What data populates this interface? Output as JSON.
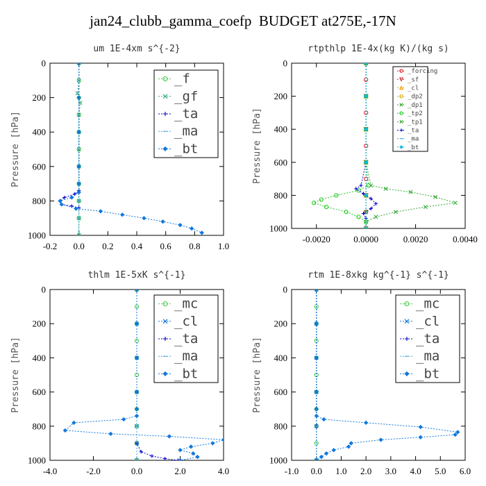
{
  "title": "jan24_clubb_gamma_coefp  BUDGET at275E,-17N",
  "chart_data": [
    {
      "type": "line",
      "title": "um  1E-4xm s^{-2}",
      "ylabel": "Pressure [hPa]",
      "xlim": [
        -0.2,
        1.0
      ],
      "ylim": [
        1000,
        0
      ],
      "xticks": [
        "-0.2",
        "0.0",
        "0.2",
        "0.4",
        "0.6",
        "0.8",
        "1.0"
      ],
      "xtick_values": [
        -0.2,
        0.0,
        0.2,
        0.4,
        0.6,
        0.8,
        1.0
      ],
      "yticks": [
        "0",
        "200",
        "400",
        "600",
        "800",
        "1000"
      ],
      "ytick_values": [
        0,
        200,
        400,
        600,
        800,
        1000
      ],
      "legend_position": "top-right",
      "series": [
        {
          "name": "_f",
          "color": "#44cc44",
          "marker": "circle",
          "x": [
            0.0,
            0.0,
            0.0,
            0.0,
            0.0,
            0.0,
            0.0,
            0.0,
            0.0,
            0.0,
            0.0
          ],
          "y": [
            0,
            100,
            200,
            300,
            400,
            500,
            600,
            700,
            800,
            900,
            1000
          ]
        },
        {
          "name": "_gf",
          "color": "#33aa77",
          "marker": "x",
          "x": [
            0.0,
            0.0,
            -0.01,
            0.01,
            0.0,
            0.0,
            0.0,
            0.0,
            0.0,
            0.0,
            0.0,
            0.0
          ],
          "y": [
            0,
            100,
            175,
            230,
            300,
            400,
            500,
            600,
            700,
            800,
            900,
            1000
          ]
        },
        {
          "name": "_ta",
          "color": "#0000cc",
          "marker": "plus",
          "x": [
            0.0,
            0.0,
            0.0,
            0.0,
            0.0,
            0.0,
            -0.03,
            -0.1,
            -0.13,
            -0.12,
            -0.05,
            0.0
          ],
          "y": [
            0,
            200,
            400,
            600,
            700,
            740,
            760,
            780,
            800,
            820,
            830,
            840
          ]
        },
        {
          "name": "_ma",
          "color": "#44aadd",
          "marker": "dash",
          "x": [
            0.0,
            0.0,
            0.0,
            0.0,
            0.0,
            0.0,
            0.0
          ],
          "y": [
            0,
            200,
            400,
            600,
            800,
            900,
            1000
          ]
        },
        {
          "name": "_bt",
          "color": "#1177dd",
          "marker": "diamond",
          "x": [
            0.0,
            0.0,
            0.0,
            0.0,
            0.0,
            0.0,
            -0.05,
            -0.13,
            -0.12,
            -0.02,
            0.15,
            0.3,
            0.45,
            0.58,
            0.7,
            0.78,
            0.85
          ],
          "y": [
            0,
            200,
            400,
            600,
            700,
            750,
            780,
            800,
            820,
            845,
            860,
            880,
            900,
            920,
            940,
            960,
            985
          ]
        }
      ]
    },
    {
      "type": "line",
      "title": "rtpthlp  1E-4x(kg K)/(kg s)",
      "ylabel": "Pressure [hPa]",
      "xlim": [
        -0.003,
        0.004
      ],
      "ylim": [
        1000,
        0
      ],
      "xticks": [
        "-0.0020",
        "0.0000",
        "0.0020",
        "0.0040"
      ],
      "xtick_values": [
        -0.002,
        0.0,
        0.002,
        0.004
      ],
      "yticks": [
        "0",
        "200",
        "400",
        "600",
        "800",
        "1000"
      ],
      "ytick_values": [
        0,
        200,
        400,
        600,
        800,
        1000
      ],
      "legend_position": "top-right",
      "series": [
        {
          "name": "_forcing",
          "color": "#dd2222",
          "marker": "circle",
          "x": [
            0.0,
            0.0,
            0.0,
            0.0,
            0.0,
            0.0,
            0.0,
            0.0,
            0.0,
            0.0,
            0.0
          ],
          "y": [
            0,
            100,
            200,
            300,
            400,
            500,
            600,
            700,
            800,
            900,
            1000
          ]
        },
        {
          "name": "_sf",
          "color": "#cc3333",
          "marker": "tri-down",
          "x": [
            0.0,
            0.0,
            0.0,
            0.0,
            0.0,
            0.0
          ],
          "y": [
            0,
            200,
            400,
            600,
            800,
            1000
          ]
        },
        {
          "name": "_cl",
          "color": "#ff9900",
          "marker": "tri-up",
          "x": [
            0.0,
            0.0,
            0.0,
            0.0,
            0.0,
            0.0
          ],
          "y": [
            0,
            200,
            400,
            600,
            800,
            1000
          ]
        },
        {
          "name": "_dp2",
          "color": "#ddaa00",
          "marker": "circle",
          "x": [
            0.0,
            0.0,
            0.0,
            0.0,
            0.0,
            0.0
          ],
          "y": [
            0,
            200,
            400,
            600,
            800,
            1000
          ]
        },
        {
          "name": "_dp1",
          "color": "#33aa33",
          "marker": "x",
          "x": [
            0.0,
            0.0,
            0.0,
            0.0,
            0.0,
            0.0,
            0.0
          ],
          "y": [
            0,
            200,
            400,
            600,
            800,
            900,
            1000
          ]
        },
        {
          "name": "_tp2",
          "color": "#22cc22",
          "marker": "circle",
          "x": [
            0.0,
            0.0,
            0.0,
            0.0,
            0.0001,
            -0.0003,
            -0.0012,
            -0.0018,
            -0.0021,
            -0.0016,
            -0.0008,
            -0.0003,
            0.0
          ],
          "y": [
            0,
            200,
            400,
            600,
            740,
            770,
            800,
            825,
            845,
            870,
            900,
            930,
            960
          ]
        },
        {
          "name": "_tp1",
          "color": "#33aa33",
          "marker": "x",
          "x": [
            0.0,
            0.0,
            0.0,
            0.0,
            0.0002,
            0.0008,
            0.0018,
            0.0028,
            0.0036,
            0.0024,
            0.0012,
            0.0004,
            0.0
          ],
          "y": [
            0,
            200,
            400,
            600,
            740,
            760,
            780,
            810,
            845,
            870,
            900,
            930,
            960
          ]
        },
        {
          "name": "_ta",
          "color": "#0000cc",
          "marker": "plus",
          "x": [
            0.0,
            0.0,
            0.0,
            0.0,
            -0.0002,
            -0.0004,
            -0.0001,
            0.0002,
            0.0004,
            0.0002,
            -0.0001,
            0.0
          ],
          "y": [
            0,
            200,
            400,
            600,
            740,
            760,
            790,
            820,
            850,
            880,
            910,
            940
          ]
        },
        {
          "name": "_ma",
          "color": "#44aadd",
          "marker": "dash",
          "x": [
            0.0,
            0.0,
            0.0,
            0.0,
            0.0,
            0.0
          ],
          "y": [
            0,
            200,
            400,
            600,
            800,
            1000
          ]
        },
        {
          "name": "_bt",
          "color": "#11bbdd",
          "marker": "diamond",
          "x": [
            0.0,
            0.0,
            0.0,
            0.0,
            0.0,
            0.0
          ],
          "y": [
            0,
            200,
            400,
            600,
            800,
            1000
          ]
        }
      ]
    },
    {
      "type": "line",
      "title": "thlm  1E-5xK s^{-1}",
      "ylabel": "Pressure [hPa]",
      "xlim": [
        -4.0,
        4.0
      ],
      "ylim": [
        1000,
        0
      ],
      "xticks": [
        "-4.0",
        "-2.0",
        "0.0",
        "2.0",
        "4.0"
      ],
      "xtick_values": [
        -4.0,
        -2.0,
        0.0,
        2.0,
        4.0
      ],
      "yticks": [
        "0",
        "200",
        "400",
        "600",
        "800",
        "1000"
      ],
      "ytick_values": [
        0,
        200,
        400,
        600,
        800,
        1000
      ],
      "legend_position": "top-right",
      "series": [
        {
          "name": "_mc",
          "color": "#44cc44",
          "marker": "circle",
          "x": [
            0.0,
            0.0,
            0.0,
            0.0,
            0.0,
            0.0,
            0.0,
            0.0,
            0.0,
            0.0,
            0.0
          ],
          "y": [
            0,
            100,
            200,
            300,
            400,
            500,
            600,
            700,
            800,
            900,
            1000
          ]
        },
        {
          "name": "_cl",
          "color": "#1177dd",
          "marker": "x",
          "x": [
            0.0,
            0.0,
            0.0,
            0.0,
            0.0,
            0.0,
            0.0
          ],
          "y": [
            0,
            200,
            400,
            600,
            800,
            900,
            1000
          ]
        },
        {
          "name": "_ta",
          "color": "#0000cc",
          "marker": "plus",
          "x": [
            0.0,
            0.0,
            0.0,
            0.0,
            0.0,
            0.2,
            0.7,
            1.3,
            1.9
          ],
          "y": [
            0,
            200,
            400,
            600,
            900,
            950,
            975,
            990,
            1000
          ]
        },
        {
          "name": "_ma",
          "color": "#44aadd",
          "marker": "dash",
          "x": [
            0.0,
            0.0,
            0.0,
            0.0,
            0.0,
            0.0
          ],
          "y": [
            0,
            200,
            400,
            600,
            800,
            1000
          ]
        },
        {
          "name": "_bt",
          "color": "#1177dd",
          "marker": "diamond",
          "x": [
            0.0,
            0.0,
            0.0,
            0.0,
            0.0,
            0.0,
            -0.6,
            -2.9,
            -3.3,
            -1.2,
            1.5,
            4.0,
            3.5,
            2.5,
            2.0,
            2.6,
            2.8,
            2.0
          ],
          "y": [
            0,
            200,
            400,
            600,
            700,
            740,
            760,
            780,
            825,
            845,
            860,
            880,
            900,
            920,
            940,
            960,
            980,
            1000
          ]
        }
      ]
    },
    {
      "type": "line",
      "title": "rtm  1E-8xkg kg^{-1} s^{-1}",
      "ylabel": "Pressure [hPa]",
      "xlim": [
        -1.0,
        6.0
      ],
      "ylim": [
        1000,
        0
      ],
      "xticks": [
        "-1.0",
        "0.0",
        "1.0",
        "2.0",
        "3.0",
        "4.0",
        "5.0",
        "6.0"
      ],
      "xtick_values": [
        -1.0,
        0.0,
        1.0,
        2.0,
        3.0,
        4.0,
        5.0,
        6.0
      ],
      "yticks": [
        "0",
        "200",
        "400",
        "600",
        "800",
        "1000"
      ],
      "ytick_values": [
        0,
        200,
        400,
        600,
        800,
        1000
      ],
      "legend_position": "top-right",
      "series": [
        {
          "name": "_mc",
          "color": "#44cc44",
          "marker": "circle",
          "x": [
            0.0,
            0.0,
            0.0,
            0.0,
            0.0,
            0.0,
            0.0,
            0.0,
            0.0,
            0.0,
            0.0
          ],
          "y": [
            0,
            100,
            200,
            300,
            400,
            500,
            600,
            700,
            800,
            900,
            1000
          ]
        },
        {
          "name": "_cl",
          "color": "#1177dd",
          "marker": "x",
          "x": [
            0.0,
            0.0,
            0.0,
            0.0,
            0.0,
            0.0
          ],
          "y": [
            0,
            200,
            400,
            600,
            800,
            1000
          ]
        },
        {
          "name": "_ta",
          "color": "#0000cc",
          "marker": "plus",
          "x": [
            0.0,
            0.0,
            0.0,
            0.0,
            0.0,
            0.0
          ],
          "y": [
            0,
            200,
            400,
            600,
            800,
            1000
          ]
        },
        {
          "name": "_ma",
          "color": "#44aadd",
          "marker": "dash",
          "x": [
            0.0,
            0.0,
            0.0,
            0.0,
            0.0,
            0.0
          ],
          "y": [
            0,
            200,
            400,
            600,
            800,
            1000
          ]
        },
        {
          "name": "_bt",
          "color": "#1177dd",
          "marker": "diamond",
          "x": [
            0.0,
            0.0,
            0.0,
            0.0,
            0.0,
            0.0,
            0.3,
            2.0,
            4.2,
            5.7,
            5.6,
            4.2,
            2.6,
            1.4,
            1.3,
            0.7,
            0.4,
            0.2,
            0.0
          ],
          "y": [
            0,
            200,
            400,
            600,
            700,
            740,
            760,
            780,
            805,
            835,
            850,
            865,
            880,
            900,
            920,
            940,
            960,
            980,
            1000
          ]
        }
      ]
    }
  ]
}
